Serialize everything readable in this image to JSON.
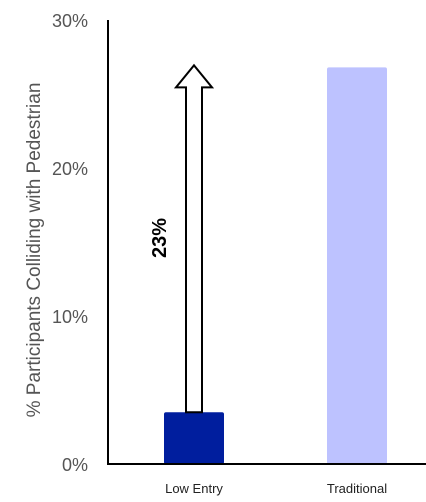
{
  "chart_data": {
    "type": "bar",
    "categories": [
      "Low Entry",
      "Traditional"
    ],
    "values": [
      3.5,
      26.8
    ],
    "ylabel": "% Participants Colliding with Pedestrian",
    "ylim": [
      0,
      30
    ],
    "yticks": [
      "0%",
      "10%",
      "20%",
      "30%"
    ],
    "grid": false,
    "colors": {
      "Low Entry": "#001E9E",
      "Traditional": "#BDC2FF"
    },
    "annotation": {
      "text": "23%",
      "type": "arrow",
      "from": 3.5,
      "to": 26.8,
      "category": "Low Entry"
    }
  }
}
